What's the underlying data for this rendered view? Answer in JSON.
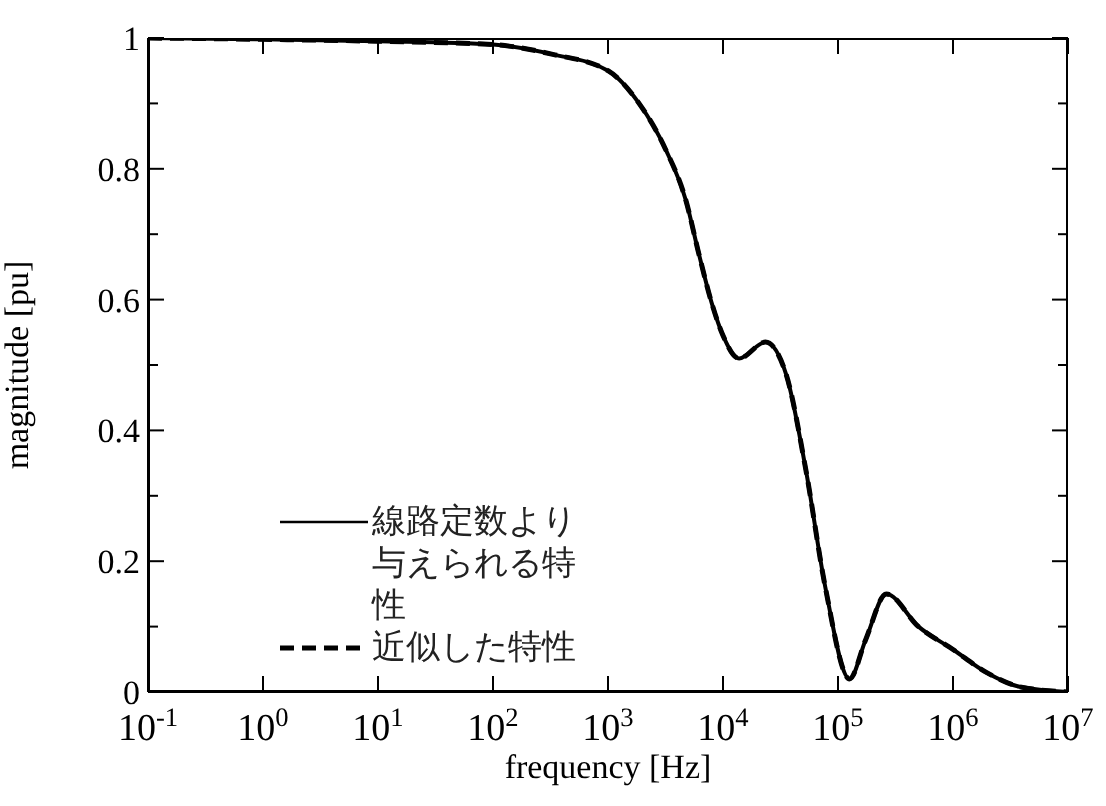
{
  "chart_data": {
    "type": "line",
    "xlabel": "frequency [Hz]",
    "ylabel": "magnitude [pu]",
    "x": [
      0.1,
      1,
      10,
      100,
      331,
      1000,
      1862,
      3162,
      4786,
      6166,
      8128,
      10000,
      13800,
      23400,
      35500,
      52500,
      77600,
      126000,
      174000,
      263000,
      501000,
      1000000,
      1950000,
      3800000,
      10000000
    ],
    "series": [
      {
        "name": "線路定数より与えられる特性",
        "color": "#000000",
        "line_style": "solid",
        "values": [
          1.0,
          0.998,
          0.995,
          0.99,
          0.975,
          0.95,
          0.9,
          0.83,
          0.75,
          0.67,
          0.59,
          0.545,
          0.51,
          0.535,
          0.485,
          0.34,
          0.16,
          0.02,
          0.08,
          0.15,
          0.1,
          0.065,
          0.03,
          0.008,
          0.0
        ]
      },
      {
        "name": "近似した特性",
        "color": "#000000",
        "line_style": "dashed",
        "values": [
          1.0,
          0.998,
          0.995,
          0.99,
          0.975,
          0.95,
          0.9,
          0.83,
          0.75,
          0.67,
          0.59,
          0.545,
          0.51,
          0.535,
          0.485,
          0.34,
          0.16,
          0.02,
          0.08,
          0.15,
          0.1,
          0.065,
          0.03,
          0.008,
          0.0
        ]
      }
    ],
    "log": "x",
    "xlim": [
      0.1,
      10000000
    ],
    "xticks": [
      {
        "value": 0.1,
        "label": "10$^{-1}$"
      },
      {
        "value": 1,
        "label": "10$^{0}$"
      },
      {
        "value": 10,
        "label": "10$^{1}$"
      },
      {
        "value": 100,
        "label": "10$^{2}$"
      },
      {
        "value": 1000,
        "label": "10$^{3}$"
      },
      {
        "value": 10000,
        "label": "10$^{4}$"
      },
      {
        "value": 100000,
        "label": "10$^{5}$"
      },
      {
        "value": 1000000,
        "label": "10$^{6}$"
      },
      {
        "value": 10000000,
        "label": "10$^{7}$"
      }
    ],
    "ylim": [
      0,
      1
    ],
    "yticks": [
      0,
      {
        "value": 0.1,
        "label": null
      },
      {
        "value": 0.2,
        "label": "0.2"
      },
      {
        "value": 0.3,
        "label": null
      },
      {
        "value": 0.4,
        "label": "0.4"
      },
      {
        "value": 0.5,
        "label": null
      },
      {
        "value": 0.6,
        "label": "0.6"
      },
      {
        "value": 0.7,
        "label": null
      },
      {
        "value": 0.8,
        "label": "0.8"
      },
      {
        "value": 0.9,
        "label": null
      },
      1
    ],
    "grid": false,
    "legend": "bottom left",
    "marker": "none"
  }
}
